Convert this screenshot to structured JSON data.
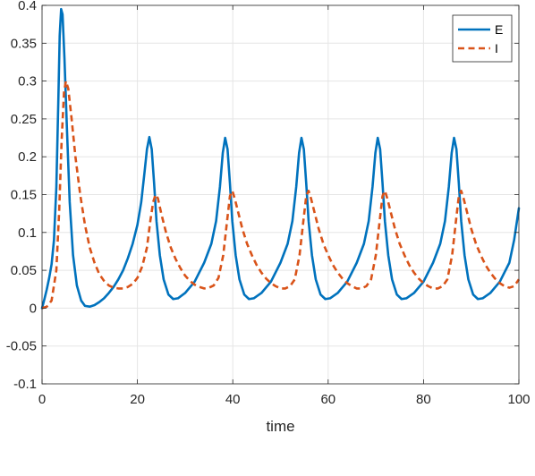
{
  "chart_data": {
    "type": "line",
    "title": "",
    "xlabel": "time",
    "ylabel": "",
    "xlim": [
      0,
      100
    ],
    "ylim": [
      -0.1,
      0.4
    ],
    "xticks": [
      0,
      20,
      40,
      60,
      80,
      100
    ],
    "yticks": [
      -0.1,
      -0.05,
      0,
      0.05,
      0.1,
      0.15,
      0.2,
      0.25,
      0.3,
      0.35,
      0.4
    ],
    "xtick_labels": [
      "0",
      "20",
      "40",
      "60",
      "80",
      "100"
    ],
    "ytick_labels": [
      "-0.1",
      "-0.05",
      "0",
      "0.05",
      "0.1",
      "0.15",
      "0.2",
      "0.25",
      "0.3",
      "0.35",
      "0.4"
    ],
    "grid": true,
    "legend_position": "top-right",
    "series": [
      {
        "name": "E",
        "color": "#0072BD",
        "style": "solid",
        "points": [
          [
            0,
            0.0
          ],
          [
            0.5,
            0.012
          ],
          [
            1,
            0.025
          ],
          [
            1.5,
            0.04
          ],
          [
            2,
            0.058
          ],
          [
            2.5,
            0.09
          ],
          [
            3,
            0.16
          ],
          [
            3.4,
            0.27
          ],
          [
            3.7,
            0.36
          ],
          [
            4,
            0.395
          ],
          [
            4.3,
            0.388
          ],
          [
            4.7,
            0.33
          ],
          [
            5.2,
            0.24
          ],
          [
            5.8,
            0.14
          ],
          [
            6.5,
            0.07
          ],
          [
            7.3,
            0.03
          ],
          [
            8.2,
            0.01
          ],
          [
            9,
            0.003
          ],
          [
            10,
            0.002
          ],
          [
            11,
            0.004
          ],
          [
            12,
            0.008
          ],
          [
            13,
            0.013
          ],
          [
            14,
            0.02
          ],
          [
            15,
            0.028
          ],
          [
            16,
            0.038
          ],
          [
            17,
            0.05
          ],
          [
            18,
            0.066
          ],
          [
            19,
            0.085
          ],
          [
            20,
            0.11
          ],
          [
            20.8,
            0.14
          ],
          [
            21.5,
            0.18
          ],
          [
            22,
            0.21
          ],
          [
            22.5,
            0.226
          ],
          [
            23,
            0.21
          ],
          [
            23.5,
            0.165
          ],
          [
            24,
            0.115
          ],
          [
            24.7,
            0.07
          ],
          [
            25.5,
            0.038
          ],
          [
            26.5,
            0.018
          ],
          [
            27.5,
            0.012
          ],
          [
            28.5,
            0.013
          ],
          [
            30,
            0.02
          ],
          [
            32,
            0.035
          ],
          [
            34,
            0.06
          ],
          [
            35.5,
            0.085
          ],
          [
            36.5,
            0.115
          ],
          [
            37.3,
            0.16
          ],
          [
            37.9,
            0.205
          ],
          [
            38.4,
            0.225
          ],
          [
            38.9,
            0.21
          ],
          [
            39.4,
            0.165
          ],
          [
            39.9,
            0.115
          ],
          [
            40.6,
            0.07
          ],
          [
            41.4,
            0.038
          ],
          [
            42.4,
            0.018
          ],
          [
            43.4,
            0.012
          ],
          [
            44.4,
            0.013
          ],
          [
            46,
            0.02
          ],
          [
            48,
            0.035
          ],
          [
            50,
            0.06
          ],
          [
            51.5,
            0.085
          ],
          [
            52.5,
            0.115
          ],
          [
            53.3,
            0.16
          ],
          [
            53.9,
            0.205
          ],
          [
            54.4,
            0.225
          ],
          [
            54.9,
            0.21
          ],
          [
            55.4,
            0.165
          ],
          [
            55.9,
            0.115
          ],
          [
            56.6,
            0.07
          ],
          [
            57.4,
            0.038
          ],
          [
            58.4,
            0.018
          ],
          [
            59.4,
            0.012
          ],
          [
            60.4,
            0.013
          ],
          [
            62,
            0.02
          ],
          [
            64,
            0.035
          ],
          [
            66,
            0.06
          ],
          [
            67.5,
            0.085
          ],
          [
            68.5,
            0.115
          ],
          [
            69.3,
            0.16
          ],
          [
            69.9,
            0.205
          ],
          [
            70.4,
            0.225
          ],
          [
            70.9,
            0.21
          ],
          [
            71.4,
            0.165
          ],
          [
            71.9,
            0.115
          ],
          [
            72.6,
            0.07
          ],
          [
            73.4,
            0.038
          ],
          [
            74.4,
            0.018
          ],
          [
            75.4,
            0.012
          ],
          [
            76.4,
            0.013
          ],
          [
            78,
            0.02
          ],
          [
            80,
            0.035
          ],
          [
            82,
            0.06
          ],
          [
            83.5,
            0.085
          ],
          [
            84.5,
            0.115
          ],
          [
            85.3,
            0.16
          ],
          [
            85.9,
            0.205
          ],
          [
            86.4,
            0.225
          ],
          [
            86.9,
            0.21
          ],
          [
            87.4,
            0.165
          ],
          [
            87.9,
            0.115
          ],
          [
            88.6,
            0.07
          ],
          [
            89.4,
            0.038
          ],
          [
            90.4,
            0.018
          ],
          [
            91.4,
            0.012
          ],
          [
            92.4,
            0.013
          ],
          [
            94,
            0.02
          ],
          [
            96,
            0.035
          ],
          [
            98,
            0.06
          ],
          [
            99,
            0.09
          ],
          [
            100,
            0.132
          ]
        ]
      },
      {
        "name": "I",
        "color": "#D95319",
        "style": "dashed",
        "points": [
          [
            0,
            0.0
          ],
          [
            1,
            0.002
          ],
          [
            2,
            0.01
          ],
          [
            3,
            0.05
          ],
          [
            3.6,
            0.13
          ],
          [
            4.1,
            0.22
          ],
          [
            4.6,
            0.285
          ],
          [
            5,
            0.3
          ],
          [
            5.5,
            0.29
          ],
          [
            6.2,
            0.25
          ],
          [
            7,
            0.2
          ],
          [
            8,
            0.15
          ],
          [
            9,
            0.11
          ],
          [
            10,
            0.08
          ],
          [
            11,
            0.06
          ],
          [
            12,
            0.045
          ],
          [
            13,
            0.036
          ],
          [
            14,
            0.03
          ],
          [
            15,
            0.027
          ],
          [
            16,
            0.026
          ],
          [
            17,
            0.026
          ],
          [
            18,
            0.028
          ],
          [
            19,
            0.032
          ],
          [
            20,
            0.04
          ],
          [
            21,
            0.055
          ],
          [
            22,
            0.08
          ],
          [
            22.7,
            0.115
          ],
          [
            23.3,
            0.14
          ],
          [
            23.8,
            0.15
          ],
          [
            24.3,
            0.145
          ],
          [
            25,
            0.125
          ],
          [
            26,
            0.1
          ],
          [
            27,
            0.08
          ],
          [
            28,
            0.065
          ],
          [
            29,
            0.053
          ],
          [
            30,
            0.043
          ],
          [
            31,
            0.036
          ],
          [
            32,
            0.031
          ],
          [
            33,
            0.028
          ],
          [
            34,
            0.026
          ],
          [
            35,
            0.027
          ],
          [
            36,
            0.03
          ],
          [
            37,
            0.04
          ],
          [
            38,
            0.07
          ],
          [
            38.8,
            0.115
          ],
          [
            39.4,
            0.148
          ],
          [
            39.9,
            0.155
          ],
          [
            40.4,
            0.145
          ],
          [
            41.2,
            0.125
          ],
          [
            42,
            0.105
          ],
          [
            43,
            0.085
          ],
          [
            44,
            0.07
          ],
          [
            45,
            0.057
          ],
          [
            46,
            0.047
          ],
          [
            47,
            0.039
          ],
          [
            48,
            0.033
          ],
          [
            49,
            0.029
          ],
          [
            50,
            0.026
          ],
          [
            51,
            0.026
          ],
          [
            52,
            0.029
          ],
          [
            53,
            0.038
          ],
          [
            54,
            0.07
          ],
          [
            54.8,
            0.115
          ],
          [
            55.4,
            0.148
          ],
          [
            55.9,
            0.155
          ],
          [
            56.4,
            0.145
          ],
          [
            57.2,
            0.125
          ],
          [
            58,
            0.105
          ],
          [
            59,
            0.085
          ],
          [
            60,
            0.07
          ],
          [
            61,
            0.057
          ],
          [
            62,
            0.047
          ],
          [
            63,
            0.039
          ],
          [
            64,
            0.033
          ],
          [
            65,
            0.029
          ],
          [
            66,
            0.026
          ],
          [
            67,
            0.026
          ],
          [
            68,
            0.029
          ],
          [
            69,
            0.038
          ],
          [
            70,
            0.07
          ],
          [
            70.8,
            0.115
          ],
          [
            71.4,
            0.148
          ],
          [
            71.9,
            0.155
          ],
          [
            72.4,
            0.145
          ],
          [
            73.2,
            0.125
          ],
          [
            74,
            0.105
          ],
          [
            75,
            0.085
          ],
          [
            76,
            0.07
          ],
          [
            77,
            0.057
          ],
          [
            78,
            0.047
          ],
          [
            79,
            0.039
          ],
          [
            80,
            0.033
          ],
          [
            81,
            0.029
          ],
          [
            82,
            0.026
          ],
          [
            83,
            0.026
          ],
          [
            84,
            0.029
          ],
          [
            85,
            0.038
          ],
          [
            86,
            0.07
          ],
          [
            86.8,
            0.115
          ],
          [
            87.4,
            0.148
          ],
          [
            87.9,
            0.155
          ],
          [
            88.4,
            0.145
          ],
          [
            89.2,
            0.125
          ],
          [
            90,
            0.105
          ],
          [
            91,
            0.085
          ],
          [
            92,
            0.07
          ],
          [
            93,
            0.057
          ],
          [
            94,
            0.047
          ],
          [
            95,
            0.039
          ],
          [
            96,
            0.033
          ],
          [
            97,
            0.029
          ],
          [
            98,
            0.027
          ],
          [
            99,
            0.029
          ],
          [
            100,
            0.038
          ]
        ]
      }
    ]
  }
}
